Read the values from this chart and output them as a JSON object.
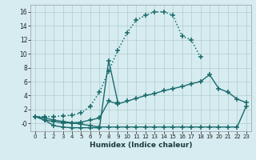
{
  "background_color": "#d6ecf0",
  "grid_color": "#b0cccc",
  "line_color": "#1a6b6b",
  "xlabel": "Humidex (Indice chaleur)",
  "xlim": [
    -0.5,
    23.5
  ],
  "ylim": [
    -1.1,
    17.0
  ],
  "xticks": [
    0,
    1,
    2,
    3,
    4,
    5,
    6,
    7,
    8,
    9,
    10,
    11,
    12,
    13,
    14,
    15,
    16,
    17,
    18,
    19,
    20,
    21,
    22,
    23
  ],
  "yticks": [
    0,
    2,
    4,
    6,
    8,
    10,
    12,
    14,
    16
  ],
  "ytick_labels": [
    "-0",
    "2",
    "4",
    "6",
    "8",
    "10",
    "12",
    "14",
    "16"
  ],
  "arch_x": [
    0,
    1,
    2,
    3,
    4,
    5,
    6,
    7,
    8,
    9,
    10,
    11,
    12,
    13,
    14,
    15,
    16,
    17,
    18
  ],
  "arch_y": [
    1.0,
    1.0,
    1.0,
    1.1,
    1.2,
    1.5,
    2.5,
    4.5,
    7.5,
    10.5,
    13.0,
    14.8,
    15.5,
    16.0,
    16.0,
    15.5,
    12.5,
    12.0,
    9.5
  ],
  "spike_x": [
    0,
    1,
    2,
    3,
    4,
    5,
    6,
    7,
    8,
    9
  ],
  "spike_y": [
    1.0,
    0.5,
    -0.3,
    -0.5,
    -0.6,
    -0.6,
    -0.6,
    -0.6,
    9.0,
    3.0
  ],
  "diag1_x": [
    0,
    1,
    2,
    3,
    4,
    5,
    6,
    7,
    8,
    9,
    10,
    11,
    12,
    13,
    14,
    15,
    16,
    17,
    18,
    19,
    20,
    21,
    22,
    23
  ],
  "diag1_y": [
    1.0,
    0.5,
    0.3,
    0.1,
    0.1,
    0.2,
    0.5,
    0.8,
    3.2,
    2.8,
    3.2,
    3.6,
    4.0,
    4.3,
    4.7,
    5.0,
    5.3,
    5.7,
    6.0,
    7.0,
    5.0,
    4.5,
    3.5,
    3.0
  ],
  "diag2_x": [
    0,
    1,
    2,
    3,
    4,
    5,
    6,
    7,
    8,
    9,
    10,
    11,
    12,
    13,
    14,
    15,
    16,
    17,
    18,
    19,
    20,
    21,
    22,
    23
  ],
  "diag2_y": [
    1.0,
    0.8,
    0.5,
    0.3,
    0.1,
    -0.1,
    -0.3,
    -0.5,
    -0.5,
    -0.5,
    -0.5,
    -0.5,
    -0.5,
    -0.5,
    -0.5,
    -0.5,
    -0.5,
    -0.5,
    -0.5,
    -0.5,
    -0.5,
    -0.5,
    -0.5,
    2.5
  ]
}
